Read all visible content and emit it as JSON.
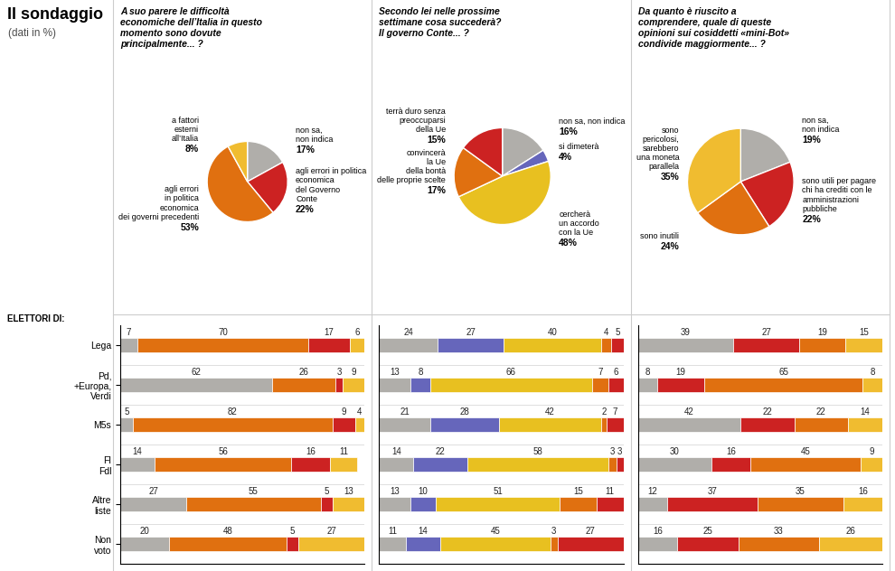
{
  "title": "Il sondaggio",
  "subtitle": "(dati in %)",
  "chart_data": [
    {
      "type": "pie",
      "title": "A suo parere le difficoltà\neconomiche dell’Italia in questo\nmomento sono dovute\nprincipalmente... ?",
      "categories": [
        "non sa,\nnon indica",
        "agli errori in politica\neconomica\ndel Governo\nConte",
        "agli errori\nin politica\neconomica\ndei governi precedenti",
        "a fattori\nesterni\nall’Italia"
      ],
      "values": [
        17,
        22,
        53,
        8
      ],
      "value_labels": [
        "17%",
        "22%",
        "53%",
        "8%"
      ],
      "colors": [
        "#b0aeaa",
        "#cc2222",
        "#e07010",
        "#f0bc30"
      ],
      "data_labels": true
    },
    {
      "type": "pie",
      "title": "Secondo lei nelle prossime\nsettimane cosa succederà?\nIl governo Conte... ?",
      "categories": [
        "non sa, non indica",
        "si dimeterà",
        "cercherà\nun accordo\ncon la Ue",
        "convincerà\nla Ue\ndella bontà\ndelle proprie scelte",
        "terrà duro senza\npreoccuparsi\ndella Ue"
      ],
      "values": [
        16,
        4,
        48,
        17,
        15
      ],
      "value_labels": [
        "16%",
        "4%",
        "48%",
        "17%",
        "15%"
      ],
      "colors": [
        "#b0aeaa",
        "#6666bb",
        "#e8c020",
        "#e07010",
        "#cc2222"
      ],
      "data_labels": true
    },
    {
      "type": "pie",
      "title": "Da quanto è riuscito a\ncomprendere, quale di queste\nopinioni sui cosiddetti «mini-Bot»\ncondivide maggiormente... ?",
      "categories": [
        "non sa,\nnon indica",
        "sono utili per pagare\nchi ha crediti con le\namministrazioni\npubbliche",
        "sono inutili",
        "sono\npericolosi,\nsarebbero\nuna moneta\nparallela"
      ],
      "values": [
        19,
        22,
        24,
        35
      ],
      "value_labels": [
        "19%",
        "22%",
        "24%",
        "35%"
      ],
      "colors": [
        "#b0aeaa",
        "#cc2222",
        "#e07010",
        "#f0bc30"
      ],
      "data_labels": true
    },
    {
      "type": "bar",
      "orientation": "horizontal",
      "stacked": true,
      "ylabel": "ELETTORI DI:",
      "categories": [
        "Lega",
        "Pd,\n+Europa,\nVerdi",
        "M5s",
        "Fl\nFdl",
        "Altre\nliste",
        "Non\nvoto"
      ],
      "series": [
        {
          "color": "#b0aeaa",
          "values": [
            7,
            62,
            5,
            14,
            27,
            20
          ]
        },
        {
          "color": "#e07010",
          "values": [
            70,
            26,
            82,
            56,
            55,
            48
          ]
        },
        {
          "color": "#cc2222",
          "values": [
            17,
            3,
            9,
            16,
            5,
            5
          ]
        },
        {
          "color": "#f0bc30",
          "values": [
            6,
            9,
            4,
            11,
            13,
            27
          ]
        }
      ],
      "xlim": [
        0,
        100
      ],
      "data_labels": true,
      "tick_labels": "y"
    },
    {
      "type": "bar",
      "orientation": "horizontal",
      "stacked": true,
      "categories": [
        "Lega",
        "Pd,\n+Europa,\nVerdi",
        "M5s",
        "Fl\nFdl",
        "Altre\nliste",
        "Non\nvoto"
      ],
      "series": [
        {
          "color": "#b0aeaa",
          "values": [
            24,
            13,
            21,
            14,
            13,
            11
          ]
        },
        {
          "color": "#6666bb",
          "values": [
            27,
            8,
            28,
            22,
            10,
            14
          ]
        },
        {
          "color": "#e8c020",
          "values": [
            40,
            66,
            42,
            58,
            51,
            45
          ]
        },
        {
          "color": "#e07010",
          "values": [
            4,
            7,
            2,
            3,
            15,
            3
          ]
        },
        {
          "color": "#cc2222",
          "values": [
            5,
            6,
            7,
            3,
            11,
            27
          ]
        }
      ],
      "xlim": [
        0,
        100
      ],
      "data_labels": true,
      "tick_labels": false
    },
    {
      "type": "bar",
      "orientation": "horizontal",
      "stacked": true,
      "categories": [
        "Lega",
        "Pd,\n+Europa,\nVerdi",
        "M5s",
        "Fl\nFdl",
        "Altre\nliste",
        "Non\nvoto"
      ],
      "series": [
        {
          "color": "#b0aeaa",
          "values": [
            39,
            8,
            42,
            30,
            12,
            16
          ]
        },
        {
          "color": "#cc2222",
          "values": [
            27,
            19,
            22,
            16,
            37,
            25
          ]
        },
        {
          "color": "#e07010",
          "values": [
            19,
            65,
            22,
            45,
            35,
            33
          ]
        },
        {
          "color": "#f0bc30",
          "values": [
            15,
            8,
            14,
            9,
            16,
            26
          ]
        }
      ],
      "xlim": [
        0,
        100
      ],
      "data_labels": true,
      "tick_labels": false
    }
  ]
}
